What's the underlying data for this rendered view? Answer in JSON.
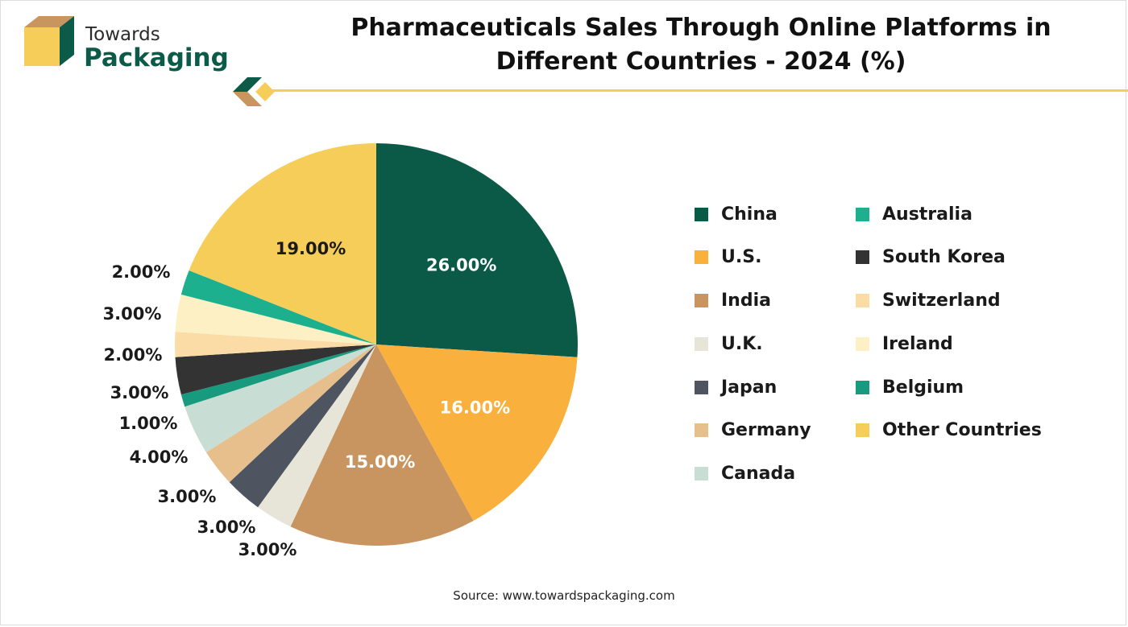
{
  "header": {
    "logo_line1": "Towards",
    "logo_line2": "Packaging",
    "title_line1": "Pharmaceuticals Sales Through Online Platforms in",
    "title_line2": "Different Countries - 2024 (%)"
  },
  "footer": {
    "source": "Source: www.towardspackaging.com"
  },
  "colors": {
    "brand_green": "#0c5a48",
    "brand_yellow": "#f4cf58",
    "brand_tan": "#c9955f"
  },
  "chart_data": {
    "type": "pie",
    "legend_position": "right",
    "slices": [
      {
        "label": "China",
        "value": 26,
        "display": "26.00%",
        "color": "#0b5a48"
      },
      {
        "label": "U.S.",
        "value": 16,
        "display": "16.00%",
        "color": "#f9b03c"
      },
      {
        "label": "India",
        "value": 15,
        "display": "15.00%",
        "color": "#c8945f"
      },
      {
        "label": "U.K.",
        "value": 3,
        "display": "3.00%",
        "color": "#e7e4d8"
      },
      {
        "label": "Japan",
        "value": 3,
        "display": "3.00%",
        "color": "#4e5560"
      },
      {
        "label": "Germany",
        "value": 3,
        "display": "3.00%",
        "color": "#e6bf8d"
      },
      {
        "label": "Canada",
        "value": 4,
        "display": "4.00%",
        "color": "#c8ddd4"
      },
      {
        "label": "Belgium",
        "value": 1,
        "display": "1.00%",
        "color": "#179a7d"
      },
      {
        "label": "South Korea",
        "value": 3,
        "display": "3.00%",
        "color": "#333333"
      },
      {
        "label": "Switzerland",
        "value": 2,
        "display": "2.00%",
        "color": "#fcdca6"
      },
      {
        "label": "Ireland",
        "value": 3,
        "display": "3.00%",
        "color": "#fdf0c5"
      },
      {
        "label": "Australia",
        "value": 2,
        "display": "2.00%",
        "color": "#1cb08e"
      },
      {
        "label": "Other Countries",
        "value": 19,
        "display": "19.00%",
        "color": "#f6cd58"
      }
    ],
    "legend_order": [
      "China",
      "Australia",
      "U.S.",
      "South Korea",
      "India",
      "Switzerland",
      "U.K.",
      "Ireland",
      "Japan",
      "Belgium",
      "Germany",
      "Other Countries",
      "Canada"
    ]
  }
}
